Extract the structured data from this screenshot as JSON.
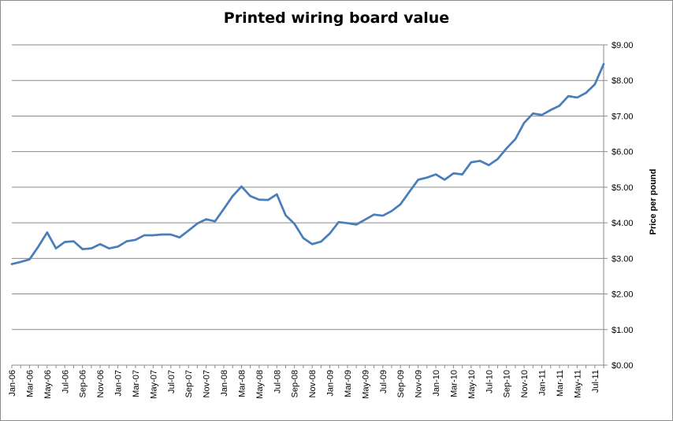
{
  "chart_data": {
    "type": "line",
    "title": "Printed wiring board value",
    "xlabel": "",
    "ylabel": "Price per pound",
    "y_axis_side": "right",
    "ylim": [
      0,
      9
    ],
    "y_ticks": [
      0,
      1,
      2,
      3,
      4,
      5,
      6,
      7,
      8,
      9
    ],
    "y_tick_labels": [
      "$0.00",
      "$1.00",
      "$2.00",
      "$3.00",
      "$4.00",
      "$5.00",
      "$6.00",
      "$7.00",
      "$8.00",
      "$9.00"
    ],
    "grid": true,
    "legend": "none",
    "line_color": "#4a7ebb",
    "x_tick_labels": [
      "Jan-06",
      "Mar-06",
      "May-06",
      "Jul-06",
      "Sep-06",
      "Nov-06",
      "Jan-07",
      "Mar-07",
      "May-07",
      "Jul-07",
      "Sep-07",
      "Nov-07",
      "Jan-08",
      "Mar-08",
      "May-08",
      "Jul-08",
      "Sep-08",
      "Nov-08",
      "Jan-09",
      "Mar-09",
      "May-09",
      "Jul-09",
      "Sep-09",
      "Nov-09",
      "Jan-10",
      "Mar-10",
      "May-10",
      "Jul-10",
      "Sep-10",
      "Nov-10",
      "Jan-11",
      "Mar-11",
      "May-11",
      "Jul-11"
    ],
    "x": [
      "Jan-06",
      "Feb-06",
      "Mar-06",
      "Apr-06",
      "May-06",
      "Jun-06",
      "Jul-06",
      "Aug-06",
      "Sep-06",
      "Oct-06",
      "Nov-06",
      "Dec-06",
      "Jan-07",
      "Feb-07",
      "Mar-07",
      "Apr-07",
      "May-07",
      "Jun-07",
      "Jul-07",
      "Aug-07",
      "Sep-07",
      "Oct-07",
      "Nov-07",
      "Dec-07",
      "Jan-08",
      "Feb-08",
      "Mar-08",
      "Apr-08",
      "May-08",
      "Jun-08",
      "Jul-08",
      "Aug-08",
      "Sep-08",
      "Oct-08",
      "Nov-08",
      "Dec-08",
      "Jan-09",
      "Feb-09",
      "Mar-09",
      "Apr-09",
      "May-09",
      "Jun-09",
      "Jul-09",
      "Aug-09",
      "Sep-09",
      "Oct-09",
      "Nov-09",
      "Dec-09",
      "Jan-10",
      "Feb-10",
      "Mar-10",
      "Apr-10",
      "May-10",
      "Jun-10",
      "Jul-10",
      "Aug-10",
      "Sep-10",
      "Oct-10",
      "Nov-10",
      "Dec-10",
      "Jan-11",
      "Feb-11",
      "Mar-11",
      "Apr-11",
      "May-11",
      "Jun-11",
      "Jul-11",
      "Aug-11"
    ],
    "series": [
      {
        "values": [
          2.84,
          2.9,
          2.97,
          3.33,
          3.73,
          3.28,
          3.46,
          3.48,
          3.26,
          3.28,
          3.4,
          3.28,
          3.33,
          3.48,
          3.52,
          3.65,
          3.65,
          3.67,
          3.67,
          3.59,
          3.78,
          3.98,
          4.1,
          4.04,
          4.39,
          4.75,
          5.02,
          4.75,
          4.65,
          4.64,
          4.8,
          4.21,
          3.97,
          3.57,
          3.4,
          3.47,
          3.7,
          4.02,
          3.99,
          3.95,
          4.09,
          4.23,
          4.2,
          4.33,
          4.52,
          4.87,
          5.21,
          5.27,
          5.36,
          5.21,
          5.39,
          5.36,
          5.7,
          5.74,
          5.62,
          5.79,
          6.09,
          6.35,
          6.81,
          7.07,
          7.03,
          7.17,
          7.29,
          7.56,
          7.52,
          7.65,
          7.89,
          8.46
        ]
      }
    ]
  }
}
